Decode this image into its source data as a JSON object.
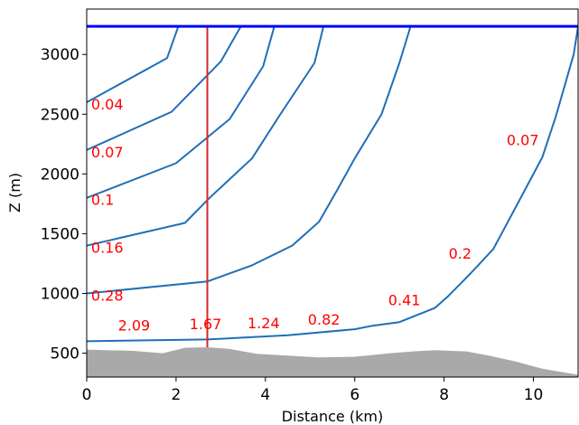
{
  "chart_data": {
    "type": "line",
    "title": "",
    "xlabel": "Distance (km)",
    "ylabel": "Z (m)",
    "xlim": [
      0,
      11
    ],
    "ylim": [
      300,
      3380
    ],
    "xticks": [
      0,
      2,
      4,
      6,
      8,
      10
    ],
    "xtick_labels": [
      "0",
      "2",
      "4",
      "6",
      "8",
      "10"
    ],
    "yticks": [
      500,
      1000,
      1500,
      2000,
      2500,
      3000
    ],
    "ytick_labels": [
      "500",
      "1000",
      "1500",
      "2000",
      "2500",
      "3000"
    ],
    "grid": false,
    "legend": "none",
    "colors": {
      "contour": "#1f6fb8",
      "surface": "#0000ff",
      "vertical": "#d62728",
      "label": "#ff0000",
      "terrain": "#a9a9a9"
    },
    "terrain": {
      "x": [
        0,
        1,
        1.7,
        2.2,
        2.7,
        3.2,
        3.8,
        4.5,
        5.2,
        6.0,
        6.8,
        7.3,
        7.8,
        8.5,
        9.0,
        9.6,
        10.2,
        10.6,
        11.0
      ],
      "y": [
        530,
        520,
        500,
        545,
        550,
        535,
        495,
        480,
        465,
        470,
        500,
        515,
        525,
        515,
        480,
        430,
        370,
        345,
        320
      ]
    },
    "surface": {
      "y": 3235
    },
    "vertical_line": {
      "x": 2.7,
      "y_from": 550,
      "y_to": 3235
    },
    "series": [
      {
        "x": [
          0,
          1.8,
          2.05
        ],
        "y": [
          2600,
          2970,
          3235
        ]
      },
      {
        "x": [
          0,
          1.9,
          3.0,
          3.45
        ],
        "y": [
          2200,
          2520,
          2940,
          3235
        ]
      },
      {
        "x": [
          0,
          2.0,
          3.2,
          3.95,
          4.2
        ],
        "y": [
          1800,
          2090,
          2460,
          2900,
          3235
        ]
      },
      {
        "x": [
          0,
          2.2,
          2.75,
          3.7,
          4.3,
          5.1,
          5.3
        ],
        "y": [
          1400,
          1590,
          1800,
          2130,
          2480,
          2930,
          3235
        ]
      },
      {
        "x": [
          0,
          2.7,
          3.7,
          4.6,
          5.2,
          5.6,
          6.0,
          6.6,
          7.0,
          7.25
        ],
        "y": [
          1000,
          1100,
          1235,
          1400,
          1600,
          1860,
          2130,
          2500,
          2930,
          3235
        ]
      },
      {
        "x": [
          0,
          2.7,
          4.5,
          6.0,
          6.4,
          7.0,
          7.8,
          8.1,
          8.6,
          9.1,
          9.4,
          9.8,
          10.2,
          10.5,
          10.9,
          11.0
        ],
        "y": [
          600,
          615,
          650,
          700,
          730,
          760,
          880,
          980,
          1170,
          1370,
          1580,
          1860,
          2140,
          2480,
          3000,
          3235
        ]
      }
    ],
    "annotations": [
      {
        "text": "0.04",
        "x": 0.1,
        "y": 2540
      },
      {
        "text": "0.07",
        "x": 0.1,
        "y": 2140
      },
      {
        "text": "0.1",
        "x": 0.1,
        "y": 1740
      },
      {
        "text": "0.16",
        "x": 0.1,
        "y": 1340
      },
      {
        "text": "0.28",
        "x": 0.1,
        "y": 940
      },
      {
        "text": "2.09",
        "x": 0.7,
        "y": 690
      },
      {
        "text": "1.67",
        "x": 2.3,
        "y": 700
      },
      {
        "text": "1.24",
        "x": 3.6,
        "y": 710
      },
      {
        "text": "0.82",
        "x": 4.95,
        "y": 740
      },
      {
        "text": "0.41",
        "x": 6.75,
        "y": 900
      },
      {
        "text": "0.2",
        "x": 8.1,
        "y": 1290
      },
      {
        "text": "0.07",
        "x": 9.4,
        "y": 2240
      }
    ]
  }
}
